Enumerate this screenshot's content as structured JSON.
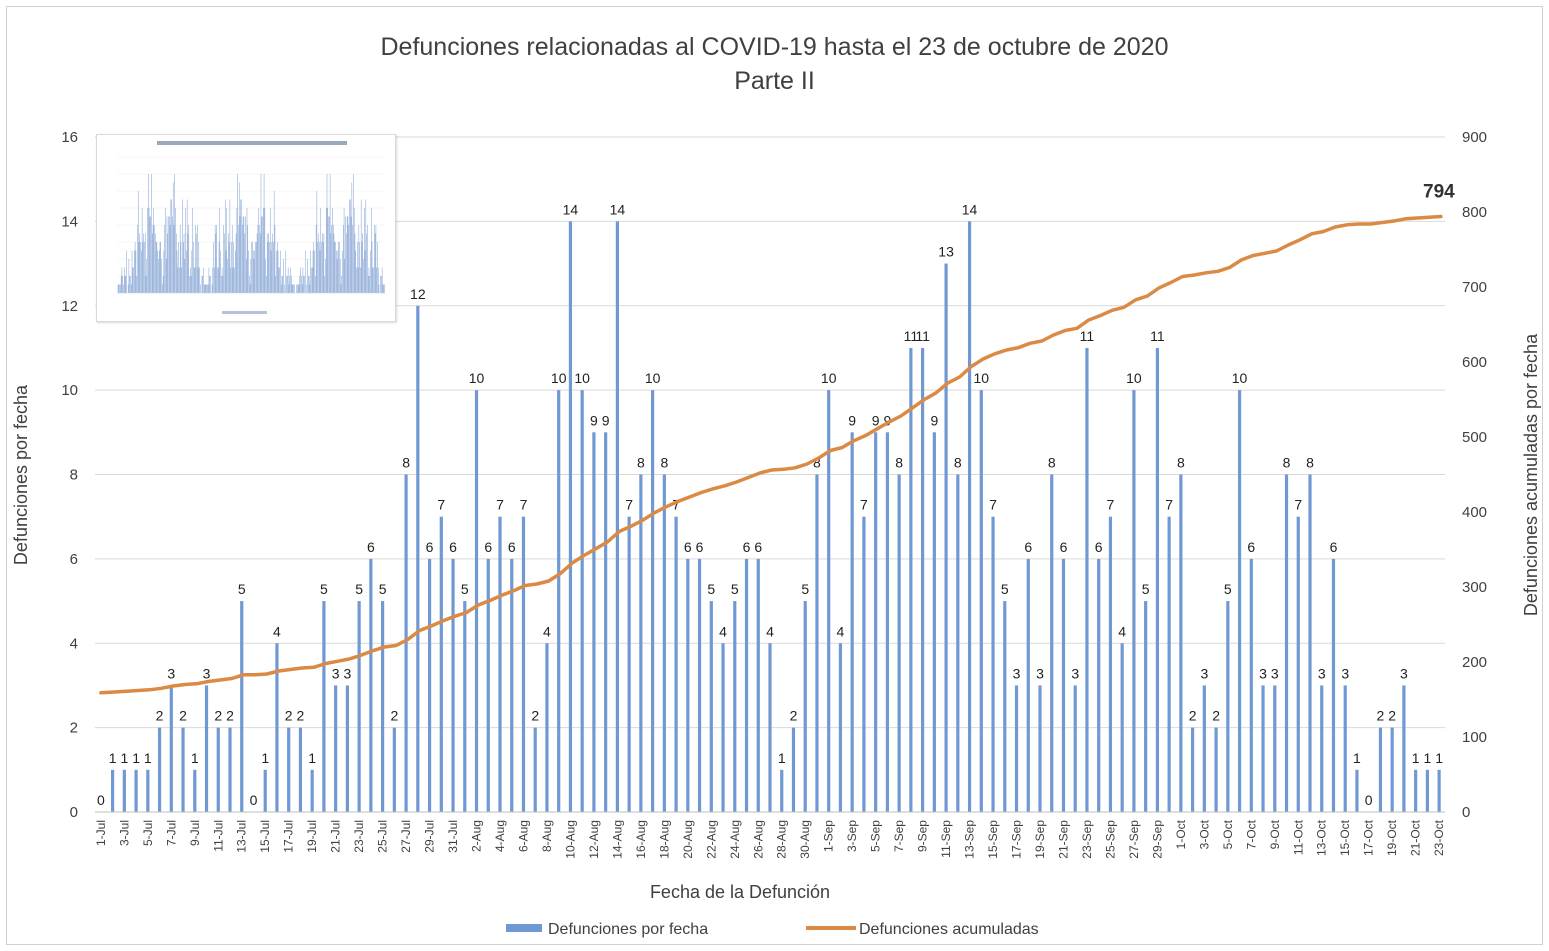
{
  "chart_data": {
    "type": "bar",
    "title": "Defunciones relacionadas al COVID-19 hasta el 23 de octubre de 2020",
    "subtitle": "Parte II",
    "xlabel": "Fecha de la Defunción",
    "ylabel": "Defunciones por fecha",
    "y2label": "Defunciones acumuladas por fecha",
    "ylim": [
      0,
      16
    ],
    "y2lim": [
      0,
      900
    ],
    "yticks": [
      0,
      2,
      4,
      6,
      8,
      10,
      12,
      14,
      16
    ],
    "y2ticks": [
      0,
      100,
      200,
      300,
      400,
      500,
      600,
      700,
      800,
      900
    ],
    "x_tick_labels": [
      "1-Jul",
      "3-Jul",
      "5-Jul",
      "7-Jul",
      "9-Jul",
      "11-Jul",
      "13-Jul",
      "15-Jul",
      "17-Jul",
      "19-Jul",
      "21-Jul",
      "23-Jul",
      "25-Jul",
      "27-Jul",
      "29-Jul",
      "31-Jul",
      "2-Aug",
      "4-Aug",
      "6-Aug",
      "8-Aug",
      "10-Aug",
      "12-Aug",
      "14-Aug",
      "16-Aug",
      "18-Aug",
      "20-Aug",
      "22-Aug",
      "24-Aug",
      "26-Aug",
      "28-Aug",
      "30-Aug",
      "1-Sep",
      "3-Sep",
      "5-Sep",
      "7-Sep",
      "9-Sep",
      "11-Sep",
      "13-Sep",
      "15-Sep",
      "17-Sep",
      "19-Sep",
      "21-Sep",
      "23-Sep",
      "25-Sep",
      "27-Sep",
      "29-Sep",
      "1-Oct",
      "3-Oct",
      "5-Oct",
      "7-Oct",
      "9-Oct",
      "11-Oct",
      "13-Oct",
      "15-Oct",
      "17-Oct",
      "19-Oct",
      "21-Oct",
      "23-Oct"
    ],
    "series": [
      {
        "name": "Defunciones por fecha",
        "type": "bar",
        "color": "#7099d3",
        "values": [
          0,
          1,
          1,
          1,
          1,
          2,
          3,
          2,
          1,
          3,
          2,
          2,
          5,
          0,
          1,
          4,
          2,
          2,
          1,
          5,
          3,
          3,
          5,
          6,
          5,
          2,
          8,
          12,
          6,
          7,
          6,
          5,
          10,
          6,
          7,
          6,
          7,
          2,
          4,
          10,
          14,
          10,
          9,
          9,
          14,
          7,
          8,
          10,
          8,
          7,
          6,
          6,
          5,
          4,
          5,
          6,
          6,
          4,
          1,
          2,
          5,
          8,
          10,
          4,
          9,
          7,
          9,
          9,
          8,
          11,
          11,
          9,
          13,
          8,
          14,
          10,
          7,
          5,
          3,
          6,
          3,
          8,
          6,
          3,
          11,
          6,
          7,
          4,
          10,
          5,
          11,
          7,
          8,
          2,
          3,
          2,
          5,
          10,
          6,
          3,
          3,
          8,
          7,
          8,
          3,
          6,
          3,
          1,
          0,
          2,
          2,
          3,
          1,
          1,
          1
        ]
      },
      {
        "name": "Defunciones acumuladas",
        "type": "line",
        "color": "#db8a45",
        "start_value": 159,
        "end_label": "794"
      }
    ],
    "legend": "bottom",
    "grid": true
  }
}
